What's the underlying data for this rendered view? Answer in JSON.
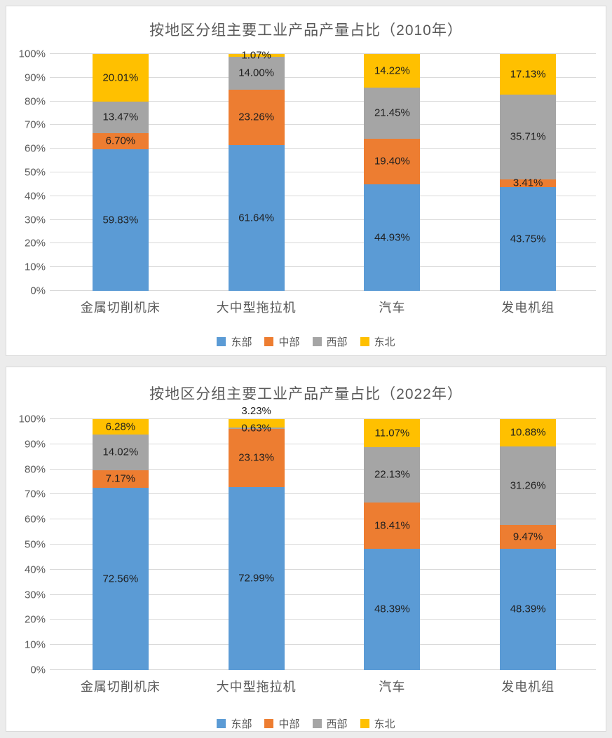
{
  "colors": {
    "background": "#ececec",
    "panel_background": "#ffffff",
    "panel_border": "#d9d9d9",
    "gridline": "#d9d9d9",
    "axis_text": "#595959",
    "data_label_text": "#1f1f1f",
    "title_text": "#595959"
  },
  "chart_data": [
    {
      "type": "bar",
      "stacked": true,
      "percent_stacked": true,
      "title": "按地区分组主要工业产品产量占比（2010年）",
      "categories": [
        "金属切削机床",
        "大中型拖拉机",
        "汽车",
        "发电机组"
      ],
      "series": [
        {
          "name": "东部",
          "color": "#5B9BD5",
          "values": [
            59.83,
            61.64,
            44.93,
            43.75
          ]
        },
        {
          "name": "中部",
          "color": "#ED7D31",
          "values": [
            6.7,
            23.26,
            19.4,
            3.41
          ]
        },
        {
          "name": "西部",
          "color": "#A5A5A5",
          "values": [
            13.47,
            14.0,
            21.45,
            35.71
          ]
        },
        {
          "name": "东北",
          "color": "#FFC000",
          "values": [
            20.01,
            1.07,
            14.22,
            17.13
          ]
        }
      ],
      "y_ticks": [
        "0%",
        "10%",
        "20%",
        "30%",
        "40%",
        "50%",
        "60%",
        "70%",
        "80%",
        "90%",
        "100%"
      ],
      "ylim": [
        0,
        100
      ],
      "grid": true,
      "legend_position": "bottom",
      "data_label_format": "0.00%",
      "label_overrides": []
    },
    {
      "type": "bar",
      "stacked": true,
      "percent_stacked": true,
      "title": "按地区分组主要工业产品产量占比（2022年）",
      "categories": [
        "金属切削机床",
        "大中型拖拉机",
        "汽车",
        "发电机组"
      ],
      "series": [
        {
          "name": "东部",
          "color": "#5B9BD5",
          "values": [
            72.56,
            72.99,
            48.39,
            48.39
          ]
        },
        {
          "name": "中部",
          "color": "#ED7D31",
          "values": [
            7.17,
            23.13,
            18.41,
            9.47
          ]
        },
        {
          "name": "西部",
          "color": "#A5A5A5",
          "values": [
            14.02,
            0.63,
            22.13,
            31.26
          ]
        },
        {
          "name": "东北",
          "color": "#FFC000",
          "values": [
            6.28,
            3.23,
            11.07,
            10.88
          ]
        }
      ],
      "y_ticks": [
        "0%",
        "10%",
        "20%",
        "30%",
        "40%",
        "50%",
        "60%",
        "70%",
        "80%",
        "90%",
        "100%"
      ],
      "ylim": [
        0,
        100
      ],
      "grid": true,
      "legend_position": "bottom",
      "data_label_format": "0.00%",
      "label_overrides": [
        {
          "category_index": 1,
          "series_index": 3,
          "position": "above_bar"
        }
      ]
    }
  ]
}
